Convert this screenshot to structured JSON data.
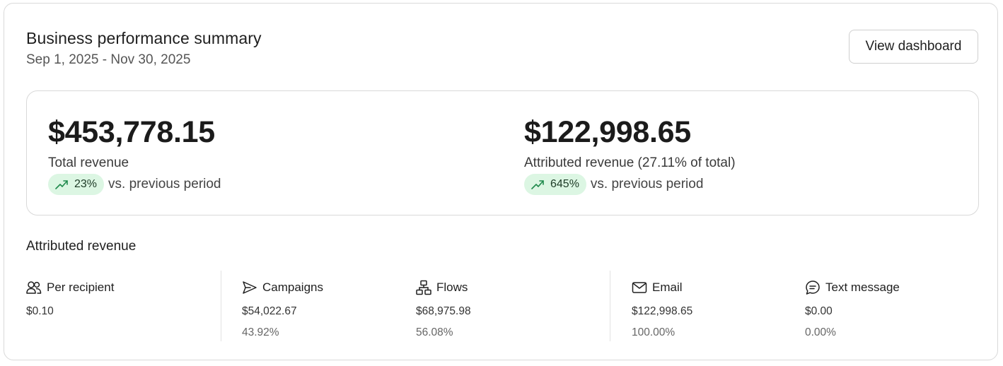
{
  "header": {
    "title": "Business performance summary",
    "date_range": "Sep 1, 2025 - Nov 30, 2025",
    "view_dashboard_label": "View dashboard"
  },
  "summary": {
    "total": {
      "amount": "$453,778.15",
      "label": "Total revenue",
      "change": "23%",
      "vs_text": "vs. previous period",
      "trend_icon": "trend-up-icon"
    },
    "attributed": {
      "amount": "$122,998.65",
      "label": "Attributed revenue (27.11% of total)",
      "change": "645%",
      "vs_text": "vs. previous period",
      "trend_icon": "trend-up-icon"
    }
  },
  "attributed_section": {
    "title": "Attributed revenue",
    "stats": [
      {
        "label": "Per recipient",
        "value": "$0.10",
        "percent": "",
        "icon": "users-icon"
      },
      {
        "label": "Campaigns",
        "value": "$54,022.67",
        "percent": "43.92%",
        "icon": "send-icon"
      },
      {
        "label": "Flows",
        "value": "$68,975.98",
        "percent": "56.08%",
        "icon": "flow-icon"
      },
      {
        "label": "Email",
        "value": "$122,998.65",
        "percent": "100.00%",
        "icon": "mail-icon"
      },
      {
        "label": "Text message",
        "value": "$0.00",
        "percent": "0.00%",
        "icon": "chat-icon"
      }
    ]
  },
  "colors": {
    "pill_bg": "#dcf6e3",
    "trend_green": "#1f8a4c",
    "border": "#d9d9d9"
  }
}
